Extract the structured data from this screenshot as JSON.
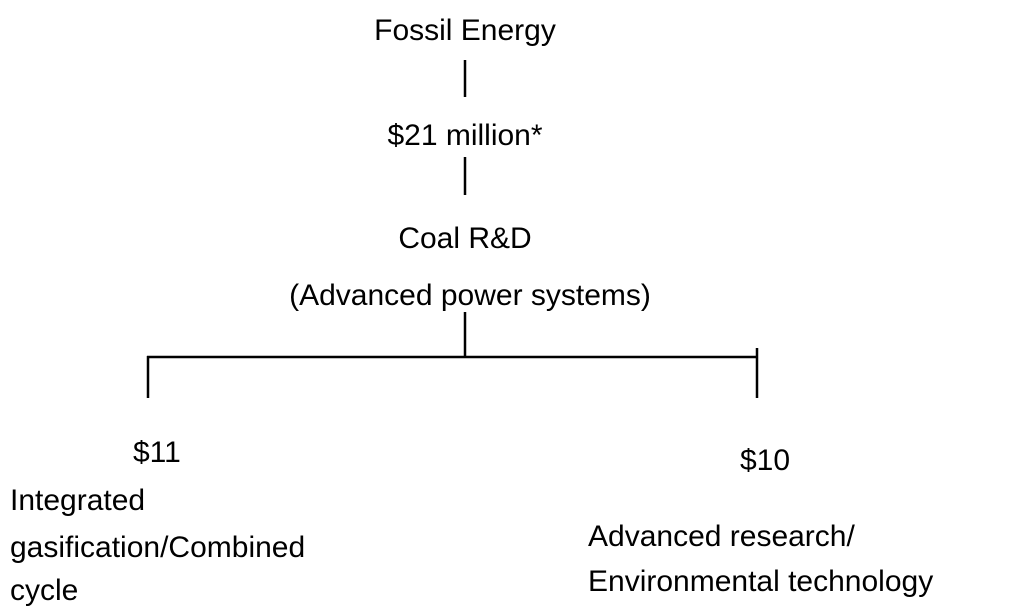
{
  "nodes": [
    {
      "label": [
        "Fossil Energy"
      ]
    },
    {
      "label": [
        "$21 million*"
      ]
    },
    {
      "label": [
        "Coal R&D",
        "(Advanced power systems)"
      ]
    },
    {
      "amount": "$11",
      "label": [
        "Integrated",
        "gasification/Combined",
        "cycle"
      ]
    },
    {
      "amount": "$10",
      "label": [
        "Advanced research/",
        "Environmental technology"
      ]
    }
  ]
}
